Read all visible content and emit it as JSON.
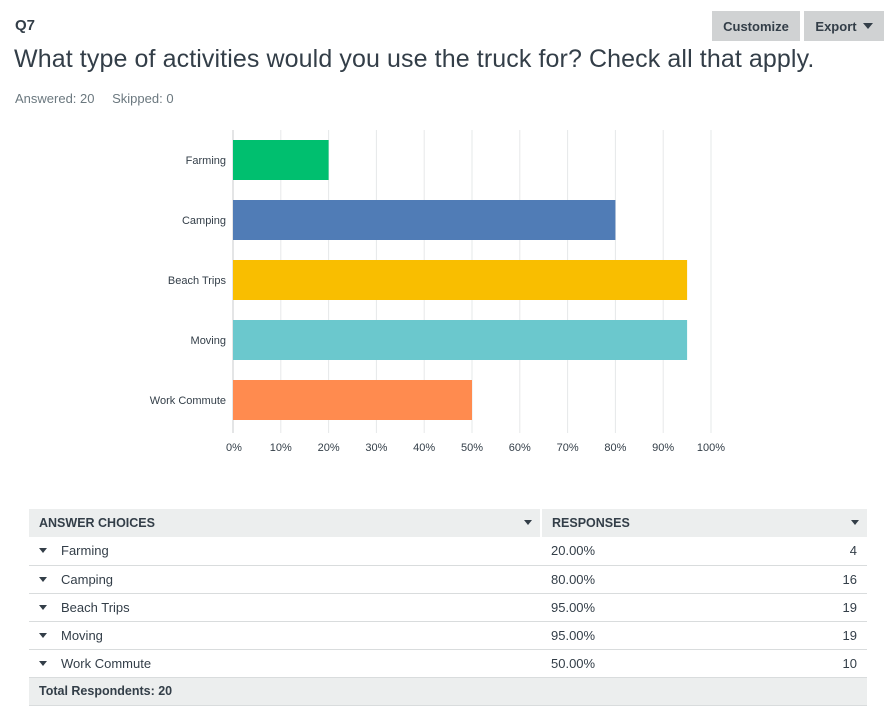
{
  "question": {
    "number": "Q7",
    "title": "What type of activities would you use the truck for? Check all that apply.",
    "answered": "Answered: 20",
    "skipped": "Skipped: 0"
  },
  "toolbar": {
    "customize_label": "Customize",
    "export_label": "Export"
  },
  "chart_data": {
    "type": "bar",
    "orientation": "horizontal",
    "categories": [
      "Farming",
      "Camping",
      "Beach Trips",
      "Moving",
      "Work Commute"
    ],
    "values": [
      20,
      80,
      95,
      95,
      50
    ],
    "colors": [
      "#00bf6f",
      "#507cb6",
      "#f9be00",
      "#6bc8cd",
      "#ff8b4f"
    ],
    "xlim": [
      0,
      100
    ],
    "x_ticks": [
      "0%",
      "10%",
      "20%",
      "30%",
      "40%",
      "50%",
      "60%",
      "70%",
      "80%",
      "90%",
      "100%"
    ],
    "grid": true
  },
  "table": {
    "headers": [
      "ANSWER CHOICES",
      "RESPONSES"
    ],
    "rows": [
      {
        "choice": "Farming",
        "pct": "20.00%",
        "count": "4"
      },
      {
        "choice": "Camping",
        "pct": "80.00%",
        "count": "16"
      },
      {
        "choice": "Beach Trips",
        "pct": "95.00%",
        "count": "19"
      },
      {
        "choice": "Moving",
        "pct": "95.00%",
        "count": "19"
      },
      {
        "choice": "Work Commute",
        "pct": "50.00%",
        "count": "10"
      }
    ],
    "total": "Total Respondents: 20"
  }
}
